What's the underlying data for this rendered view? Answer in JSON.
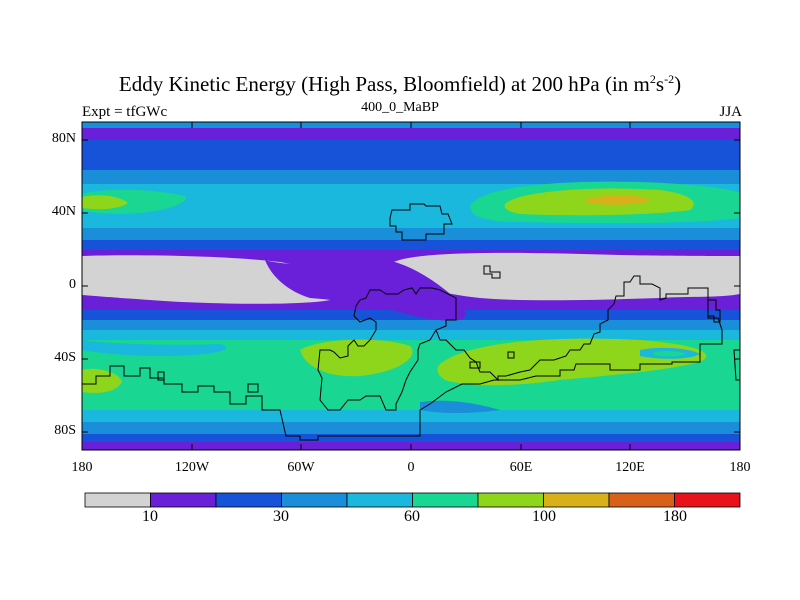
{
  "title_main": "Eddy Kinetic Energy (High Pass, Bloomfield) at 200 hPa (in m",
  "title_sup1": "2",
  "title_mid": "s",
  "title_sup2": "-2",
  "title_end": ")",
  "subtitle": "400_0_MaBP",
  "expt_label": "Expt = tfGWc",
  "season": "JJA",
  "lat_ticks": [
    "80N",
    "40N",
    "0",
    "40S",
    "80S"
  ],
  "lon_ticks": [
    "180",
    "120W",
    "60W",
    "0",
    "60E",
    "120E",
    "180"
  ],
  "colorbar": {
    "colors": [
      "#d3d3d3",
      "#6a1fd8",
      "#1753d8",
      "#1a8ed8",
      "#19b8dc",
      "#19d692",
      "#8ed61b",
      "#d8b01a",
      "#d86018",
      "#e8121a"
    ],
    "labels": [
      "10",
      "30",
      "60",
      "100",
      "180"
    ]
  },
  "palette": {
    "white": "#ffffff",
    "gray": "#d3d3d3",
    "purple": "#6a1fd8",
    "blue": "#1753d8",
    "mid_blue": "#1a8ed8",
    "cyan": "#19b8dc",
    "green": "#19d692",
    "yellow_green": "#8ed61b",
    "orange": "#d8b01a"
  }
}
